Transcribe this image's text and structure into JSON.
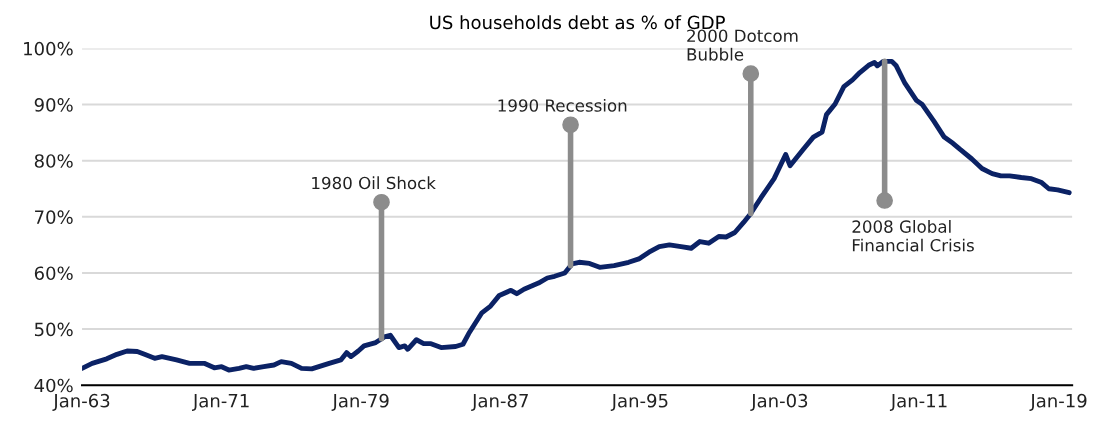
{
  "chart_data": {
    "type": "line",
    "title": "US households debt as % of GDP",
    "series": [
      {
        "color": "#0b2265",
        "x": [
          "1963-01",
          "1963-08",
          "1964-06",
          "1965-01",
          "1965-08",
          "1966-03",
          "1966-08",
          "1967-03",
          "1967-08",
          "1968-06",
          "1969-03",
          "1970-01",
          "1970-08",
          "1971-01",
          "1971-06",
          "1972-01",
          "1972-06",
          "1972-11",
          "1973-06",
          "1974-01",
          "1974-06",
          "1975-01",
          "1975-08",
          "1976-03",
          "1977-03",
          "1977-11",
          "1978-03",
          "1978-06",
          "1978-11",
          "1979-03",
          "1979-11",
          "1980-05",
          "1980-09",
          "1981-03",
          "1981-07",
          "1981-09",
          "1982-03",
          "1982-08",
          "1983-01",
          "1983-08",
          "1984-06",
          "1984-11",
          "1985-03",
          "1985-12",
          "1986-06",
          "1986-12",
          "1987-08",
          "1987-12",
          "1988-05",
          "1989-03",
          "1989-09",
          "1990-02",
          "1990-09",
          "1991-02",
          "1991-07",
          "1992-02",
          "1992-09",
          "1993-07",
          "1994-05",
          "1994-12",
          "1995-07",
          "1996-02",
          "1996-09",
          "1997-05",
          "1997-12",
          "1998-06",
          "1998-12",
          "1999-07",
          "1999-12",
          "2000-06",
          "2000-12",
          "2001-05",
          "2001-12",
          "2002-09",
          "2003-05",
          "2003-08",
          "2004-05",
          "2004-12",
          "2005-06",
          "2005-09",
          "2006-03",
          "2006-09",
          "2007-03",
          "2007-08",
          "2008-02",
          "2008-06",
          "2008-08",
          "2008-12",
          "2009-06",
          "2009-09",
          "2010-03",
          "2010-11",
          "2011-03",
          "2011-11",
          "2012-06",
          "2012-12",
          "2013-05",
          "2014-01",
          "2014-08",
          "2015-03",
          "2015-09",
          "2016-03",
          "2016-11",
          "2017-06",
          "2018-01",
          "2018-06",
          "2018-12",
          "2019-08"
        ],
        "values": [
          43.0,
          43.9,
          44.7,
          45.5,
          46.1,
          46.0,
          45.5,
          44.8,
          45.1,
          44.5,
          43.9,
          43.9,
          43.1,
          43.3,
          42.7,
          43.0,
          43.3,
          43.0,
          43.3,
          43.6,
          44.2,
          43.9,
          43.0,
          42.9,
          43.9,
          44.5,
          45.8,
          45.1,
          46.1,
          47.0,
          47.6,
          48.6,
          48.9,
          46.7,
          47.0,
          46.4,
          48.1,
          47.4,
          47.4,
          46.7,
          46.9,
          47.3,
          49.2,
          52.9,
          54.1,
          56.0,
          56.9,
          56.3,
          57.1,
          58.2,
          59.1,
          59.4,
          60.0,
          61.6,
          61.9,
          61.7,
          61.0,
          61.3,
          61.9,
          62.5,
          63.7,
          64.7,
          65.0,
          64.7,
          64.4,
          65.6,
          65.3,
          66.5,
          66.4,
          67.2,
          69.0,
          70.6,
          73.4,
          76.8,
          81.1,
          79.1,
          82.0,
          84.2,
          85.1,
          88.2,
          90.1,
          93.2,
          94.4,
          95.7,
          97.0,
          97.5,
          96.9,
          97.7,
          97.7,
          96.9,
          93.8,
          90.7,
          90.0,
          87.0,
          84.2,
          83.1,
          82.0,
          80.3,
          78.6,
          77.7,
          77.3,
          77.3,
          77.0,
          76.8,
          76.1,
          75.0,
          74.8,
          74.3
        ]
      }
    ],
    "annotations": [
      {
        "text": "1980 Oil Shock",
        "x": "1980-03",
        "y": 72.6
      },
      {
        "text": "1990 Recession",
        "x": "1991-01",
        "y": 86.4
      },
      {
        "text": "2000 Dotcom\nBubble",
        "x": "2001-05",
        "y": 95.5
      },
      {
        "text": "2008 Global\nFinancial Crisis",
        "x": "2009-01",
        "y": 72.9
      }
    ],
    "xlim": [
      "1963-01",
      "2019-10"
    ],
    "ylim": [
      40,
      100
    ],
    "xticks": [
      {
        "value": "1963-01",
        "label": "Jan-63"
      },
      {
        "value": "1971-01",
        "label": "Jan-71"
      },
      {
        "value": "1979-01",
        "label": "Jan-79"
      },
      {
        "value": "1987-01",
        "label": "Jan-87"
      },
      {
        "value": "1995-01",
        "label": "Jan-95"
      },
      {
        "value": "2003-01",
        "label": "Jan-03"
      },
      {
        "value": "2011-01",
        "label": "Jan-11"
      },
      {
        "value": "2019-01",
        "label": "Jan-19"
      }
    ],
    "yticks": [
      {
        "value": 40,
        "label": "40%"
      },
      {
        "value": 50,
        "label": "50%"
      },
      {
        "value": 60,
        "label": "60%"
      },
      {
        "value": 70,
        "label": "70%"
      },
      {
        "value": 80,
        "label": "80%"
      },
      {
        "value": 90,
        "label": "90%"
      },
      {
        "value": 100,
        "label": "100%"
      }
    ],
    "grid": "y",
    "legend": false,
    "marker": "none",
    "line_style": "solid"
  }
}
